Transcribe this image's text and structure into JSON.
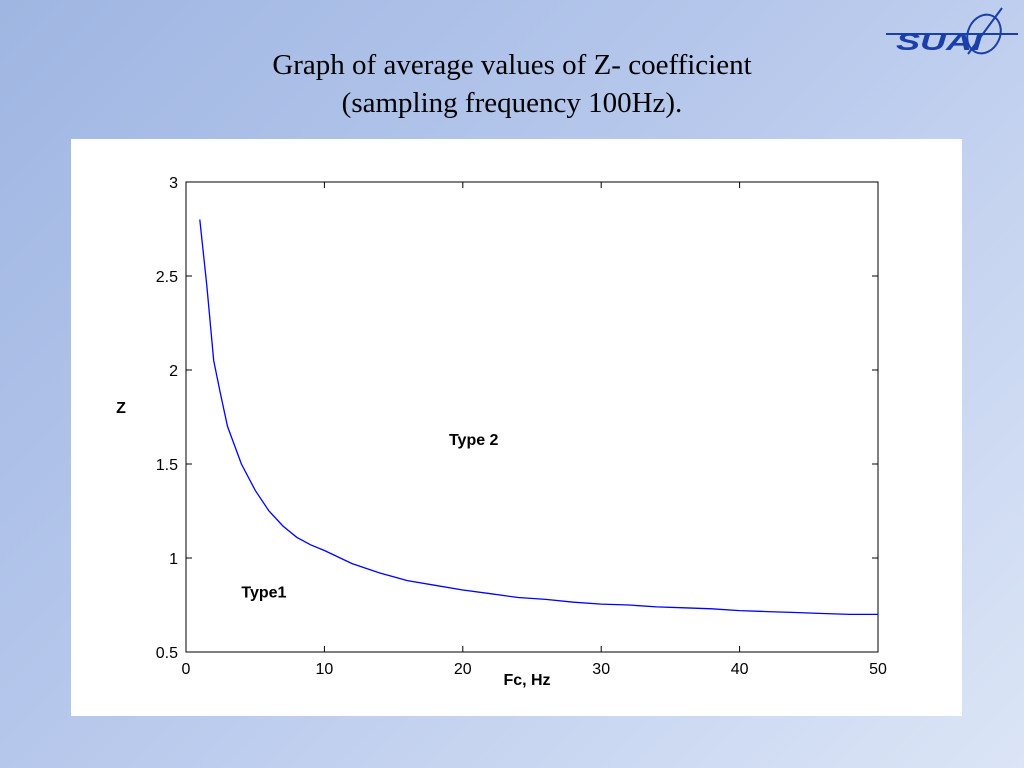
{
  "slide": {
    "title_line1": "Graph of average values of Z- coefficient",
    "title_line2": "(sampling frequency 100Hz)."
  },
  "logo": {
    "text": "SUAI",
    "color": "#1a3fa8"
  },
  "chart_data": {
    "type": "line",
    "xlabel": "Fc, Hz",
    "ylabel": "Z",
    "xlim": [
      0,
      50
    ],
    "ylim": [
      0.5,
      3
    ],
    "xticks": [
      0,
      10,
      20,
      30,
      40,
      50
    ],
    "yticks": [
      0.5,
      1,
      1.5,
      2,
      2.5,
      3
    ],
    "grid": false,
    "line_color": "#0000ff",
    "series": [
      {
        "x": [
          1,
          1.5,
          2,
          2.5,
          3,
          4,
          5,
          6,
          7,
          8,
          9,
          10,
          12,
          14,
          16,
          18,
          20,
          22,
          24,
          26,
          28,
          30,
          32,
          34,
          36,
          38,
          40,
          42,
          44,
          46,
          48,
          50
        ],
        "values": [
          2.8,
          2.45,
          2.05,
          1.87,
          1.7,
          1.5,
          1.36,
          1.25,
          1.17,
          1.11,
          1.07,
          1.04,
          0.97,
          0.92,
          0.88,
          0.855,
          0.83,
          0.81,
          0.79,
          0.78,
          0.765,
          0.755,
          0.75,
          0.74,
          0.735,
          0.73,
          0.72,
          0.715,
          0.71,
          0.705,
          0.7,
          0.7
        ]
      }
    ],
    "annotations": [
      {
        "text": "Type 2",
        "x": 19,
        "y": 1.6
      },
      {
        "text": "Type1",
        "x": 4,
        "y": 0.79
      }
    ]
  }
}
